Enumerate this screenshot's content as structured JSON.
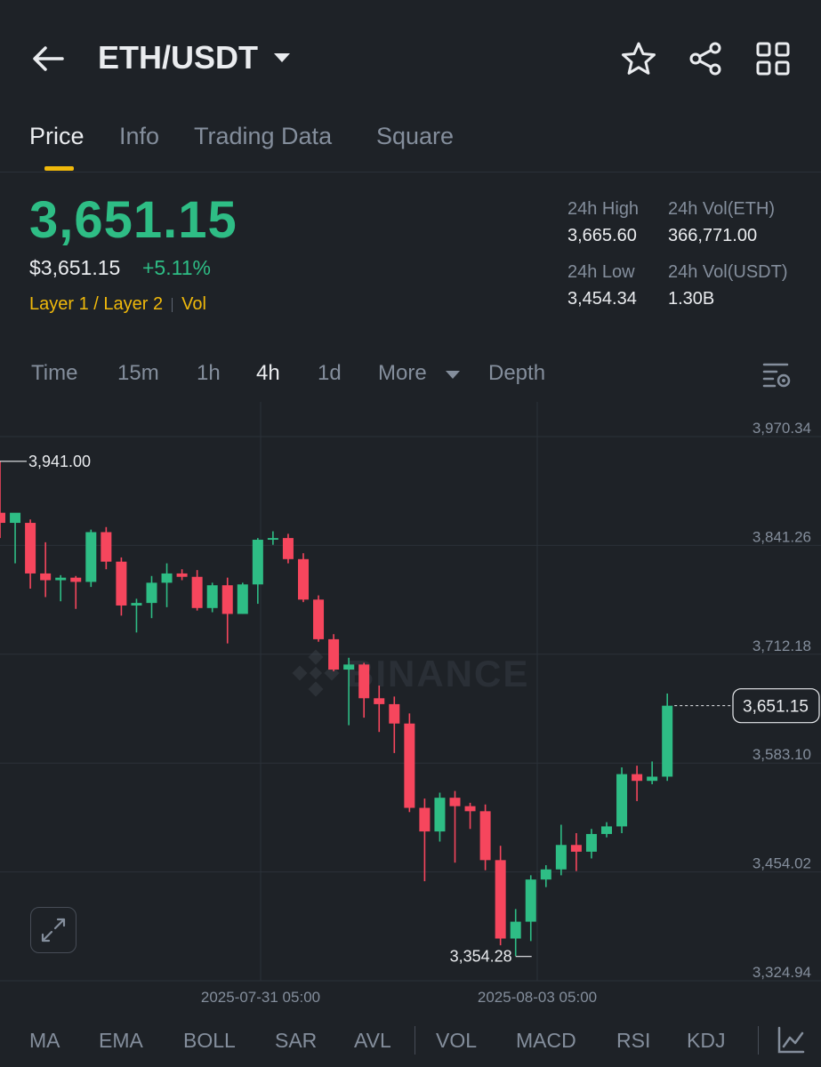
{
  "header": {
    "pair": "ETH/USDT",
    "icons": [
      "back-arrow-icon",
      "chevron-down-icon",
      "star-icon",
      "share-icon",
      "grid-icon"
    ]
  },
  "tabs": [
    {
      "label": "Price",
      "active": true
    },
    {
      "label": "Info",
      "active": false
    },
    {
      "label": "Trading Data",
      "active": false
    },
    {
      "label": "Square",
      "active": false
    }
  ],
  "price": {
    "last": "3,651.15",
    "usd": "$3,651.15",
    "change": "+5.11%",
    "tag1": "Layer 1 / Layer 2",
    "tag2": "Vol"
  },
  "stats": {
    "high_label": "24h High",
    "high_value": "3,665.60",
    "vol_eth_label": "24h Vol(ETH)",
    "vol_eth_value": "366,771.00",
    "low_label": "24h Low",
    "low_value": "3,454.34",
    "vol_usdt_label": "24h Vol(USDT)",
    "vol_usdt_value": "1.30B"
  },
  "intervals": [
    {
      "label": "Time",
      "active": false
    },
    {
      "label": "15m",
      "active": false
    },
    {
      "label": "1h",
      "active": false
    },
    {
      "label": "4h",
      "active": true
    },
    {
      "label": "1d",
      "active": false
    },
    {
      "label": "More",
      "active": false
    },
    {
      "label": "Depth",
      "active": false
    }
  ],
  "indicators": [
    "MA",
    "EMA",
    "BOLL",
    "SAR",
    "AVL",
    "VOL",
    "MACD",
    "RSI",
    "KDJ"
  ],
  "colors": {
    "up": "#2ebd85",
    "down": "#f6465d",
    "accent": "#f0b90b",
    "background": "#1e2227"
  },
  "chart_data": {
    "type": "candlestick",
    "watermark": "BINANCE",
    "y_ticks": [
      "3,970.34",
      "3,841.26",
      "3,712.18",
      "3,583.10",
      "3,454.02",
      "3,324.94"
    ],
    "y_tick_values": [
      3970.34,
      3841.26,
      3712.18,
      3583.1,
      3454.02,
      3324.94
    ],
    "x_labels": [
      "2025-07-31 05:00",
      "2025-08-03 05:00"
    ],
    "high_marker": {
      "label": "3,941.00",
      "value": 3941.0
    },
    "low_marker": {
      "label": "3,354.28",
      "value": 3354.28
    },
    "last_price": {
      "label": "3,651.15",
      "value": 3651.15
    },
    "candles": [
      {
        "o": 3880,
        "h": 3941,
        "l": 3850,
        "c": 3868
      },
      {
        "o": 3868,
        "h": 3878,
        "l": 3820,
        "c": 3880
      },
      {
        "o": 3868,
        "h": 3872,
        "l": 3790,
        "c": 3808
      },
      {
        "o": 3808,
        "h": 3845,
        "l": 3780,
        "c": 3800
      },
      {
        "o": 3800,
        "h": 3806,
        "l": 3775,
        "c": 3803
      },
      {
        "o": 3803,
        "h": 3805,
        "l": 3766,
        "c": 3798
      },
      {
        "o": 3798,
        "h": 3860,
        "l": 3792,
        "c": 3857
      },
      {
        "o": 3857,
        "h": 3863,
        "l": 3813,
        "c": 3822
      },
      {
        "o": 3822,
        "h": 3827,
        "l": 3758,
        "c": 3770
      },
      {
        "o": 3770,
        "h": 3778,
        "l": 3738,
        "c": 3773
      },
      {
        "o": 3773,
        "h": 3805,
        "l": 3755,
        "c": 3797
      },
      {
        "o": 3797,
        "h": 3820,
        "l": 3768,
        "c": 3808
      },
      {
        "o": 3808,
        "h": 3813,
        "l": 3800,
        "c": 3804
      },
      {
        "o": 3804,
        "h": 3812,
        "l": 3764,
        "c": 3767
      },
      {
        "o": 3767,
        "h": 3797,
        "l": 3762,
        "c": 3794
      },
      {
        "o": 3794,
        "h": 3803,
        "l": 3725,
        "c": 3760
      },
      {
        "o": 3760,
        "h": 3797,
        "l": 3760,
        "c": 3795
      },
      {
        "o": 3795,
        "h": 3850,
        "l": 3772,
        "c": 3848
      },
      {
        "o": 3848,
        "h": 3858,
        "l": 3842,
        "c": 3850
      },
      {
        "o": 3850,
        "h": 3855,
        "l": 3820,
        "c": 3825
      },
      {
        "o": 3825,
        "h": 3832,
        "l": 3774,
        "c": 3777
      },
      {
        "o": 3777,
        "h": 3782,
        "l": 3727,
        "c": 3730
      },
      {
        "o": 3730,
        "h": 3736,
        "l": 3692,
        "c": 3694
      },
      {
        "o": 3694,
        "h": 3708,
        "l": 3628,
        "c": 3700
      },
      {
        "o": 3700,
        "h": 3702,
        "l": 3637,
        "c": 3660
      },
      {
        "o": 3660,
        "h": 3675,
        "l": 3620,
        "c": 3653
      },
      {
        "o": 3653,
        "h": 3662,
        "l": 3595,
        "c": 3630
      },
      {
        "o": 3630,
        "h": 3642,
        "l": 3525,
        "c": 3530
      },
      {
        "o": 3530,
        "h": 3541,
        "l": 3443,
        "c": 3502
      },
      {
        "o": 3502,
        "h": 3548,
        "l": 3490,
        "c": 3542
      },
      {
        "o": 3542,
        "h": 3550,
        "l": 3465,
        "c": 3532
      },
      {
        "o": 3532,
        "h": 3536,
        "l": 3505,
        "c": 3526
      },
      {
        "o": 3526,
        "h": 3534,
        "l": 3456,
        "c": 3468
      },
      {
        "o": 3468,
        "h": 3485,
        "l": 3367,
        "c": 3375
      },
      {
        "o": 3375,
        "h": 3410,
        "l": 3354.28,
        "c": 3395
      },
      {
        "o": 3395,
        "h": 3450,
        "l": 3372,
        "c": 3445
      },
      {
        "o": 3445,
        "h": 3462,
        "l": 3436,
        "c": 3457
      },
      {
        "o": 3457,
        "h": 3510,
        "l": 3450,
        "c": 3486
      },
      {
        "o": 3486,
        "h": 3500,
        "l": 3455,
        "c": 3478
      },
      {
        "o": 3478,
        "h": 3505,
        "l": 3470,
        "c": 3499
      },
      {
        "o": 3499,
        "h": 3513,
        "l": 3495,
        "c": 3508
      },
      {
        "o": 3508,
        "h": 3578,
        "l": 3500,
        "c": 3570
      },
      {
        "o": 3570,
        "h": 3580,
        "l": 3538,
        "c": 3562
      },
      {
        "o": 3562,
        "h": 3585,
        "l": 3558,
        "c": 3567
      },
      {
        "o": 3567,
        "h": 3665.6,
        "l": 3562,
        "c": 3651.15
      }
    ]
  }
}
